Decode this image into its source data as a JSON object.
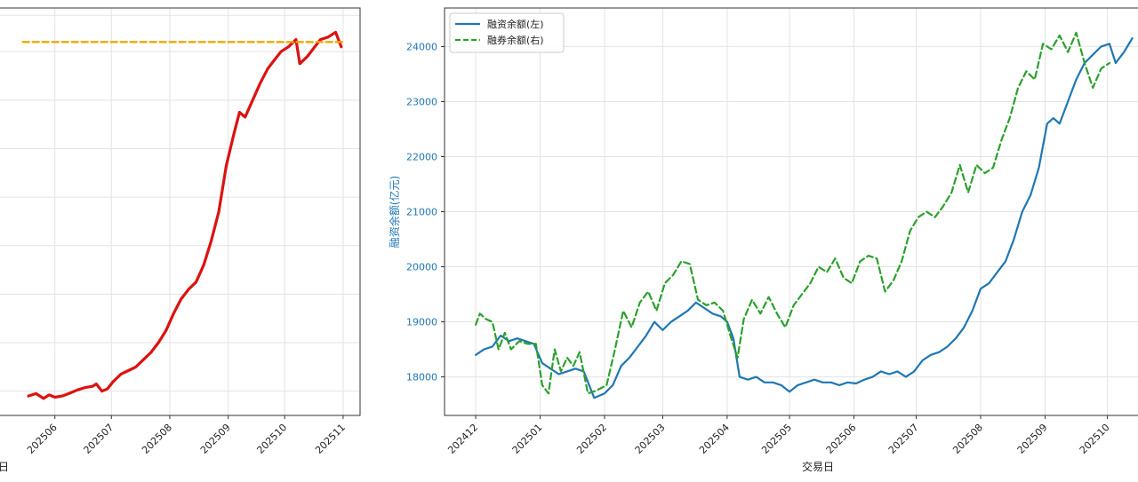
{
  "chart_data": [
    {
      "type": "line",
      "title": "",
      "xlabel": "日",
      "ylabel": "",
      "x_ticks": [
        "202506",
        "202507",
        "202508",
        "202509",
        "202510",
        "202511"
      ],
      "grid": true,
      "series": [
        {
          "color": "#dd1111",
          "points": [
            [
              "2025-05-18",
              18.0
            ],
            [
              "2025-05-22",
              19.0
            ],
            [
              "2025-05-26",
              17.0
            ],
            [
              "2025-05-29",
              18.5
            ],
            [
              "2025-06-01",
              17.5
            ],
            [
              "2025-06-05",
              18.0
            ],
            [
              "2025-06-09",
              19.2
            ],
            [
              "2025-06-13",
              20.5
            ],
            [
              "2025-06-17",
              21.5
            ],
            [
              "2025-06-21",
              22.0
            ],
            [
              "2025-06-23",
              23.0
            ],
            [
              "2025-06-26",
              20.0
            ],
            [
              "2025-06-29",
              21.0
            ],
            [
              "2025-07-02",
              24.0
            ],
            [
              "2025-07-06",
              27.0
            ],
            [
              "2025-07-10",
              28.5
            ],
            [
              "2025-07-14",
              30.0
            ],
            [
              "2025-07-18",
              33.0
            ],
            [
              "2025-07-22",
              36.0
            ],
            [
              "2025-07-26",
              40.0
            ],
            [
              "2025-07-30",
              45.0
            ],
            [
              "2025-08-03",
              52.0
            ],
            [
              "2025-08-07",
              58.0
            ],
            [
              "2025-08-11",
              62.0
            ],
            [
              "2025-08-15",
              65.0
            ],
            [
              "2025-08-19",
              72.0
            ],
            [
              "2025-08-23",
              82.0
            ],
            [
              "2025-08-27",
              94.0
            ],
            [
              "2025-08-31",
              113.0
            ],
            [
              "2025-09-04",
              126.0
            ],
            [
              "2025-09-07",
              135.0
            ],
            [
              "2025-09-10",
              133.0
            ],
            [
              "2025-09-14",
              140.0
            ],
            [
              "2025-09-18",
              147.0
            ],
            [
              "2025-09-22",
              153.0
            ],
            [
              "2025-09-26",
              157.0
            ],
            [
              "2025-09-29",
              160.0
            ],
            [
              "2025-10-03",
              162.0
            ],
            [
              "2025-10-07",
              165.0
            ],
            [
              "2025-10-09",
              155.0
            ],
            [
              "2025-10-13",
              158.0
            ],
            [
              "2025-10-17",
              162.0
            ],
            [
              "2025-10-20",
              165.0
            ],
            [
              "2025-10-24",
              166.0
            ],
            [
              "2025-10-28",
              168.0
            ],
            [
              "2025-10-31",
              162.0
            ]
          ]
        },
        {
          "color": "#f0a800",
          "style": "dashed",
          "points": [
            [
              "2025-05-15",
              164.0
            ],
            [
              "2025-11-01",
              164.0
            ]
          ]
        }
      ]
    },
    {
      "type": "line",
      "title": "",
      "xlabel": "交易日",
      "ylabel": "融资余额(亿元)",
      "x_ticks": [
        "202412",
        "202501",
        "202502",
        "202503",
        "202504",
        "202505",
        "202506",
        "202507",
        "202508",
        "202509",
        "202510"
      ],
      "y_ticks": [
        18000,
        19000,
        20000,
        21000,
        22000,
        23000,
        24000
      ],
      "grid": true,
      "legend_position": "top-left",
      "series": [
        {
          "name": "融资余额(左)",
          "color": "#1f77b4",
          "points": [
            [
              "2024-12-01",
              18400
            ],
            [
              "2024-12-05",
              18500
            ],
            [
              "2024-12-09",
              18550
            ],
            [
              "2024-12-13",
              18750
            ],
            [
              "2024-12-17",
              18650
            ],
            [
              "2024-12-21",
              18700
            ],
            [
              "2024-12-25",
              18650
            ],
            [
              "2024-12-29",
              18600
            ],
            [
              "2025-01-02",
              18250
            ],
            [
              "2025-01-06",
              18150
            ],
            [
              "2025-01-10",
              18050
            ],
            [
              "2025-01-14",
              18100
            ],
            [
              "2025-01-18",
              18150
            ],
            [
              "2025-01-22",
              18100
            ],
            [
              "2025-01-27",
              17620
            ],
            [
              "2025-02-01",
              17700
            ],
            [
              "2025-02-05",
              17850
            ],
            [
              "2025-02-09",
              18200
            ],
            [
              "2025-02-13",
              18350
            ],
            [
              "2025-02-17",
              18550
            ],
            [
              "2025-02-21",
              18750
            ],
            [
              "2025-02-25",
              19000
            ],
            [
              "2025-03-01",
              18850
            ],
            [
              "2025-03-05",
              19000
            ],
            [
              "2025-03-09",
              19100
            ],
            [
              "2025-03-13",
              19200
            ],
            [
              "2025-03-17",
              19350
            ],
            [
              "2025-03-21",
              19250
            ],
            [
              "2025-03-25",
              19150
            ],
            [
              "2025-03-29",
              19100
            ],
            [
              "2025-04-01",
              19000
            ],
            [
              "2025-04-04",
              18700
            ],
            [
              "2025-04-07",
              18000
            ],
            [
              "2025-04-11",
              17950
            ],
            [
              "2025-04-15",
              18000
            ],
            [
              "2025-04-19",
              17900
            ],
            [
              "2025-04-23",
              17900
            ],
            [
              "2025-04-27",
              17850
            ],
            [
              "2025-05-01",
              17730
            ],
            [
              "2025-05-05",
              17850
            ],
            [
              "2025-05-09",
              17900
            ],
            [
              "2025-05-13",
              17950
            ],
            [
              "2025-05-17",
              17900
            ],
            [
              "2025-05-21",
              17900
            ],
            [
              "2025-05-25",
              17850
            ],
            [
              "2025-05-29",
              17900
            ],
            [
              "2025-06-02",
              17880
            ],
            [
              "2025-06-06",
              17950
            ],
            [
              "2025-06-10",
              18000
            ],
            [
              "2025-06-14",
              18100
            ],
            [
              "2025-06-18",
              18050
            ],
            [
              "2025-06-22",
              18100
            ],
            [
              "2025-06-26",
              18000
            ],
            [
              "2025-06-30",
              18100
            ],
            [
              "2025-07-04",
              18300
            ],
            [
              "2025-07-08",
              18400
            ],
            [
              "2025-07-12",
              18450
            ],
            [
              "2025-07-16",
              18550
            ],
            [
              "2025-07-20",
              18700
            ],
            [
              "2025-07-24",
              18900
            ],
            [
              "2025-07-28",
              19200
            ],
            [
              "2025-08-01",
              19600
            ],
            [
              "2025-08-05",
              19700
            ],
            [
              "2025-08-09",
              19900
            ],
            [
              "2025-08-13",
              20100
            ],
            [
              "2025-08-17",
              20500
            ],
            [
              "2025-08-21",
              21000
            ],
            [
              "2025-08-25",
              21300
            ],
            [
              "2025-08-29",
              21800
            ],
            [
              "2025-09-02",
              22600
            ],
            [
              "2025-09-05",
              22700
            ],
            [
              "2025-09-08",
              22600
            ],
            [
              "2025-09-12",
              23000
            ],
            [
              "2025-09-16",
              23400
            ],
            [
              "2025-09-20",
              23700
            ],
            [
              "2025-09-24",
              23850
            ],
            [
              "2025-09-28",
              24000
            ],
            [
              "2025-10-02",
              24050
            ],
            [
              "2025-10-05",
              23700
            ],
            [
              "2025-10-09",
              23900
            ],
            [
              "2025-10-13",
              24150
            ]
          ]
        },
        {
          "name": "融券余额(右)",
          "color": "#2ca02c",
          "style": "dashed",
          "points": [
            [
              "2024-12-01",
              18950
            ],
            [
              "2024-12-03",
              19150
            ],
            [
              "2024-12-06",
              19050
            ],
            [
              "2024-12-09",
              19000
            ],
            [
              "2024-12-12",
              18500
            ],
            [
              "2024-12-15",
              18800
            ],
            [
              "2024-12-18",
              18500
            ],
            [
              "2024-12-22",
              18650
            ],
            [
              "2024-12-26",
              18600
            ],
            [
              "2024-12-30",
              18600
            ],
            [
              "2025-01-02",
              17850
            ],
            [
              "2025-01-05",
              17700
            ],
            [
              "2025-01-08",
              18500
            ],
            [
              "2025-01-11",
              18100
            ],
            [
              "2025-01-14",
              18350
            ],
            [
              "2025-01-17",
              18200
            ],
            [
              "2025-01-20",
              18450
            ],
            [
              "2025-01-24",
              17700
            ],
            [
              "2025-01-28",
              17750
            ],
            [
              "2025-02-02",
              17850
            ],
            [
              "2025-02-06",
              18500
            ],
            [
              "2025-02-10",
              19200
            ],
            [
              "2025-02-14",
              18900
            ],
            [
              "2025-02-18",
              19350
            ],
            [
              "2025-02-22",
              19550
            ],
            [
              "2025-02-26",
              19200
            ],
            [
              "2025-03-02",
              19700
            ],
            [
              "2025-03-06",
              19850
            ],
            [
              "2025-03-10",
              20100
            ],
            [
              "2025-03-14",
              20050
            ],
            [
              "2025-03-18",
              19400
            ],
            [
              "2025-03-22",
              19300
            ],
            [
              "2025-03-26",
              19350
            ],
            [
              "2025-03-30",
              19200
            ],
            [
              "2025-04-03",
              18700
            ],
            [
              "2025-04-06",
              18350
            ],
            [
              "2025-04-09",
              19050
            ],
            [
              "2025-04-13",
              19400
            ],
            [
              "2025-04-17",
              19150
            ],
            [
              "2025-04-21",
              19450
            ],
            [
              "2025-04-25",
              19150
            ],
            [
              "2025-04-29",
              18900
            ],
            [
              "2025-05-03",
              19300
            ],
            [
              "2025-05-07",
              19500
            ],
            [
              "2025-05-11",
              19700
            ],
            [
              "2025-05-15",
              20000
            ],
            [
              "2025-05-19",
              19900
            ],
            [
              "2025-05-23",
              20150
            ],
            [
              "2025-05-27",
              19800
            ],
            [
              "2025-05-31",
              19700
            ],
            [
              "2025-06-04",
              20100
            ],
            [
              "2025-06-08",
              20200
            ],
            [
              "2025-06-12",
              20150
            ],
            [
              "2025-06-16",
              19550
            ],
            [
              "2025-06-20",
              19750
            ],
            [
              "2025-06-24",
              20100
            ],
            [
              "2025-06-28",
              20650
            ],
            [
              "2025-07-02",
              20900
            ],
            [
              "2025-07-06",
              21000
            ],
            [
              "2025-07-10",
              20900
            ],
            [
              "2025-07-14",
              21100
            ],
            [
              "2025-07-18",
              21350
            ],
            [
              "2025-07-22",
              21850
            ],
            [
              "2025-07-26",
              21350
            ],
            [
              "2025-07-30",
              21850
            ],
            [
              "2025-08-03",
              21700
            ],
            [
              "2025-08-07",
              21800
            ],
            [
              "2025-08-11",
              22300
            ],
            [
              "2025-08-15",
              22700
            ],
            [
              "2025-08-19",
              23250
            ],
            [
              "2025-08-23",
              23550
            ],
            [
              "2025-08-27",
              23400
            ],
            [
              "2025-08-31",
              24050
            ],
            [
              "2025-09-04",
              23950
            ],
            [
              "2025-09-08",
              24200
            ],
            [
              "2025-09-12",
              23900
            ],
            [
              "2025-09-16",
              24250
            ],
            [
              "2025-09-20",
              23700
            ],
            [
              "2025-09-24",
              23250
            ],
            [
              "2025-09-28",
              23600
            ],
            [
              "2025-10-02",
              23700
            ]
          ]
        }
      ]
    }
  ]
}
